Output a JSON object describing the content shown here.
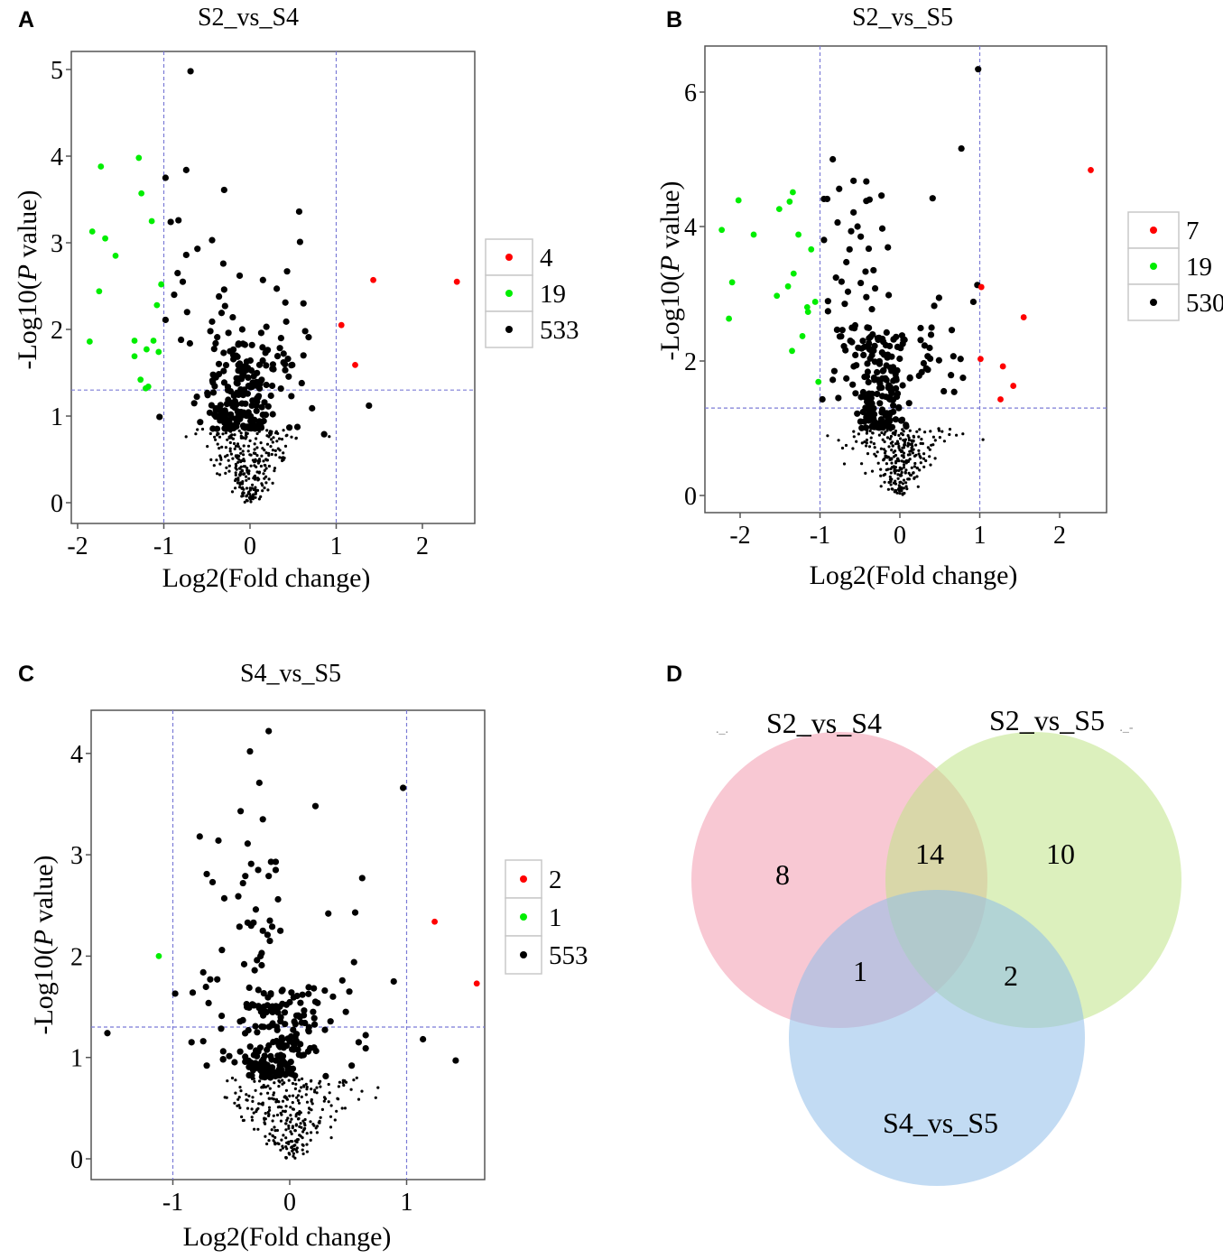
{
  "colors": {
    "up": "#ff0000",
    "down": "#00ee00",
    "ns": "#000000",
    "guide": "#7b7bd6",
    "frame": "#555555",
    "venn_a": "#f29aae",
    "venn_b": "#bfe486",
    "venn_c": "#8fbde9"
  },
  "panel_letters": [
    "A",
    "B",
    "C",
    "D"
  ],
  "chart_data": [
    {
      "type": "scatter",
      "title": "S2_vs_S4",
      "xlabel": "Log2(Fold change)",
      "ylabel_parts": [
        "-Log10(",
        "P",
        " value)"
      ],
      "xlim": [
        -2.0,
        2.6
      ],
      "ylim": [
        -0.2,
        5.2
      ],
      "xticks": [
        -2,
        -1,
        0,
        1,
        2
      ],
      "yticks": [
        0,
        1,
        2,
        3,
        4,
        5
      ],
      "thresholds": {
        "log2fc": [
          -1,
          1
        ],
        "neglog10p": 1.3
      },
      "legend": {
        "position": "right",
        "entries": [
          {
            "label": "4",
            "group": "up"
          },
          {
            "label": "19",
            "group": "down"
          },
          {
            "label": "533",
            "group": "ns"
          }
        ]
      },
      "up": [
        [
          1.43,
          2.57
        ],
        [
          2.4,
          2.55
        ],
        [
          1.06,
          2.05
        ],
        [
          1.22,
          1.59
        ]
      ],
      "down": [
        [
          -1.73,
          3.88
        ],
        [
          -1.29,
          3.98
        ],
        [
          -1.26,
          3.57
        ],
        [
          -1.14,
          3.25
        ],
        [
          -1.83,
          3.13
        ],
        [
          -1.68,
          3.05
        ],
        [
          -1.56,
          2.85
        ],
        [
          -1.75,
          2.44
        ],
        [
          -1.03,
          2.52
        ],
        [
          -1.08,
          2.28
        ],
        [
          -1.86,
          1.86
        ],
        [
          -1.34,
          1.87
        ],
        [
          -1.12,
          1.87
        ],
        [
          -1.2,
          1.77
        ],
        [
          -1.06,
          1.74
        ],
        [
          -1.34,
          1.69
        ],
        [
          -1.27,
          1.42
        ],
        [
          -1.18,
          1.34
        ],
        [
          -1.21,
          1.32
        ]
      ],
      "ns_points": [
        [
          -0.69,
          4.98
        ],
        [
          -0.74,
          3.84
        ],
        [
          -0.98,
          3.75
        ],
        [
          -0.3,
          3.61
        ],
        [
          0.57,
          3.36
        ],
        [
          0.58,
          3.01
        ],
        [
          -0.92,
          3.24
        ],
        [
          -0.83,
          3.26
        ],
        [
          -0.44,
          3.03
        ],
        [
          -0.61,
          2.93
        ],
        [
          -0.74,
          2.86
        ],
        [
          -0.31,
          2.76
        ],
        [
          0.43,
          2.67
        ],
        [
          -0.12,
          2.62
        ],
        [
          0.15,
          2.57
        ],
        [
          -0.84,
          2.65
        ],
        [
          -0.78,
          2.55
        ],
        [
          0.31,
          2.47
        ],
        [
          -0.3,
          2.46
        ],
        [
          -0.88,
          2.4
        ],
        [
          -0.36,
          2.38
        ],
        [
          0.41,
          2.31
        ],
        [
          0.62,
          2.3
        ],
        [
          -0.29,
          2.27
        ],
        [
          -0.73,
          2.2
        ],
        [
          -0.33,
          2.19
        ],
        [
          -0.2,
          2.14
        ],
        [
          -0.98,
          2.11
        ],
        [
          -0.44,
          2.09
        ],
        [
          0.42,
          2.09
        ],
        [
          0.19,
          2.03
        ],
        [
          -0.09,
          2.0
        ],
        [
          -0.46,
          1.98
        ],
        [
          -0.25,
          1.96
        ],
        [
          0.13,
          1.96
        ],
        [
          0.64,
          1.98
        ],
        [
          0.68,
          1.91
        ],
        [
          -0.38,
          1.91
        ],
        [
          -0.8,
          1.88
        ],
        [
          0.36,
          1.9
        ],
        [
          1.38,
          1.12
        ],
        [
          0.86,
          0.79
        ],
        [
          0.72,
          1.09
        ],
        [
          -1.05,
          0.99
        ],
        [
          0.62,
          1.7
        ],
        [
          0.39,
          1.72
        ],
        [
          0.44,
          1.66
        ],
        [
          0.49,
          1.59
        ],
        [
          0.6,
          1.38
        ],
        [
          0.48,
          1.23
        ]
      ],
      "ns_cloud": {
        "total_ns": 533,
        "big_center": -0.1,
        "big_spread": 0.3,
        "big_ymin": 0.85,
        "big_ymax": 1.85,
        "big_fraction": 0.42,
        "small_spread": 0.32,
        "small_ymax": 0.85,
        "seed": 11
      }
    },
    {
      "type": "scatter",
      "title": "S2_vs_S5",
      "xlabel": "Log2(Fold change)",
      "ylabel_parts": [
        "-Log10(",
        "P",
        " value)"
      ],
      "xlim": [
        -2.4,
        2.6
      ],
      "ylim": [
        -0.25,
        6.6
      ],
      "xticks": [
        -2,
        -1,
        0,
        1,
        2
      ],
      "yticks": [
        0,
        2,
        4,
        6
      ],
      "thresholds": {
        "log2fc": [
          -1,
          1
        ],
        "neglog10p": 1.3
      },
      "legend": {
        "position": "right",
        "entries": [
          {
            "label": "7",
            "group": "up"
          },
          {
            "label": "19",
            "group": "down"
          },
          {
            "label": "530",
            "group": "ns"
          }
        ]
      },
      "up": [
        [
          2.39,
          4.84
        ],
        [
          1.02,
          3.1
        ],
        [
          1.55,
          2.65
        ],
        [
          1.01,
          2.03
        ],
        [
          1.29,
          1.92
        ],
        [
          1.42,
          1.63
        ],
        [
          1.26,
          1.43
        ]
      ],
      "down": [
        [
          -2.23,
          3.95
        ],
        [
          -2.02,
          4.39
        ],
        [
          -1.83,
          3.88
        ],
        [
          -1.51,
          4.26
        ],
        [
          -1.38,
          4.37
        ],
        [
          -1.34,
          4.51
        ],
        [
          -1.27,
          3.88
        ],
        [
          -1.11,
          3.66
        ],
        [
          -2.1,
          3.17
        ],
        [
          -1.33,
          3.3
        ],
        [
          -1.4,
          3.11
        ],
        [
          -1.54,
          2.97
        ],
        [
          -1.06,
          2.88
        ],
        [
          -1.16,
          2.8
        ],
        [
          -1.15,
          2.73
        ],
        [
          -2.14,
          2.63
        ],
        [
          -1.22,
          2.37
        ],
        [
          -1.35,
          2.15
        ],
        [
          -1.02,
          1.69
        ]
      ],
      "ns_points": [
        [
          0.98,
          6.34
        ],
        [
          0.77,
          5.16
        ],
        [
          -0.84,
          5.0
        ],
        [
          0.41,
          4.42
        ],
        [
          0.97,
          3.13
        ],
        [
          0.92,
          2.88
        ],
        [
          -0.95,
          4.41
        ],
        [
          -0.91,
          4.41
        ],
        [
          -0.76,
          4.56
        ],
        [
          -0.58,
          4.68
        ],
        [
          -0.42,
          4.67
        ],
        [
          -0.23,
          4.46
        ],
        [
          -0.42,
          4.38
        ],
        [
          -0.38,
          4.4
        ],
        [
          -0.78,
          4.06
        ],
        [
          -0.58,
          4.21
        ],
        [
          -0.22,
          3.97
        ],
        [
          -0.53,
          4.0
        ],
        [
          -0.61,
          3.93
        ],
        [
          -0.49,
          3.85
        ],
        [
          -0.95,
          3.8
        ],
        [
          -0.63,
          3.66
        ],
        [
          -0.39,
          3.67
        ],
        [
          -0.15,
          3.69
        ],
        [
          -0.67,
          3.47
        ],
        [
          -0.33,
          3.35
        ],
        [
          -0.43,
          3.33
        ],
        [
          -0.8,
          3.24
        ],
        [
          -0.73,
          3.18
        ],
        [
          -0.49,
          3.16
        ],
        [
          -0.31,
          3.08
        ],
        [
          -0.65,
          3.03
        ],
        [
          -0.14,
          2.98
        ],
        [
          -0.42,
          2.95
        ],
        [
          0.49,
          2.94
        ],
        [
          0.43,
          2.82
        ],
        [
          -0.9,
          2.89
        ],
        [
          -0.9,
          2.74
        ],
        [
          -0.69,
          2.85
        ],
        [
          -0.35,
          2.77
        ],
        [
          0.26,
          2.49
        ],
        [
          0.65,
          2.46
        ],
        [
          0.39,
          2.39
        ],
        [
          0.31,
          2.23
        ],
        [
          0.49,
          2.01
        ],
        [
          0.67,
          2.07
        ],
        [
          0.76,
          2.03
        ],
        [
          0.79,
          1.75
        ],
        [
          0.64,
          1.79
        ],
        [
          0.68,
          1.54
        ],
        [
          0.35,
          1.87
        ],
        [
          0.24,
          1.78
        ],
        [
          0.55,
          1.55
        ],
        [
          -0.82,
          1.85
        ],
        [
          -0.84,
          1.72
        ],
        [
          -0.67,
          1.74
        ],
        [
          -0.77,
          1.45
        ],
        [
          -0.97,
          1.43
        ],
        [
          -0.72,
          2.46
        ],
        [
          -0.7,
          2.22
        ],
        [
          -0.56,
          2.53
        ],
        [
          -0.6,
          2.28
        ]
      ],
      "ns_cloud": {
        "total_ns": 530,
        "big_center": -0.2,
        "big_spread": 0.22,
        "big_ymin": 1.0,
        "big_ymax": 2.5,
        "big_fraction": 0.42,
        "small_spread": 0.32,
        "small_ymax": 1.0,
        "seed": 23
      }
    },
    {
      "type": "scatter",
      "title": "S4_vs_S5",
      "xlabel": "Log2(Fold change)",
      "ylabel_parts": [
        "-Log10(",
        "P",
        " value)"
      ],
      "xlim": [
        -1.7,
        1.7
      ],
      "ylim": [
        -0.2,
        4.4
      ],
      "xticks": [
        -1,
        0,
        1
      ],
      "yticks": [
        0,
        1,
        2,
        3,
        4
      ],
      "thresholds": {
        "log2fc": [
          -1,
          1
        ],
        "neglog10p": 1.3
      },
      "legend": {
        "position": "right",
        "entries": [
          {
            "label": "2",
            "group": "up"
          },
          {
            "label": "1",
            "group": "down"
          },
          {
            "label": "553",
            "group": "ns"
          }
        ]
      },
      "up": [
        [
          1.24,
          2.34
        ],
        [
          1.6,
          1.73
        ]
      ],
      "down": [
        [
          -1.12,
          2.0
        ]
      ],
      "ns_points": [
        [
          -0.18,
          4.22
        ],
        [
          -0.34,
          4.02
        ],
        [
          -0.26,
          3.71
        ],
        [
          0.97,
          3.66
        ],
        [
          0.22,
          3.48
        ],
        [
          -0.42,
          3.43
        ],
        [
          -0.23,
          3.35
        ],
        [
          -0.77,
          3.18
        ],
        [
          -0.61,
          3.14
        ],
        [
          -0.36,
          3.11
        ],
        [
          -0.33,
          2.91
        ],
        [
          -0.27,
          2.85
        ],
        [
          -0.16,
          2.93
        ],
        [
          -0.12,
          2.93
        ],
        [
          -0.12,
          2.85
        ],
        [
          -0.18,
          2.79
        ],
        [
          -0.71,
          2.81
        ],
        [
          -0.66,
          2.73
        ],
        [
          -0.38,
          2.79
        ],
        [
          -0.4,
          2.72
        ],
        [
          0.62,
          2.77
        ],
        [
          -0.56,
          2.57
        ],
        [
          -0.44,
          2.59
        ],
        [
          -0.1,
          2.56
        ],
        [
          -0.29,
          2.46
        ],
        [
          0.33,
          2.42
        ],
        [
          0.56,
          2.43
        ],
        [
          -0.36,
          2.33
        ],
        [
          -0.31,
          2.33
        ],
        [
          -0.33,
          2.3
        ],
        [
          -0.43,
          2.29
        ],
        [
          -0.17,
          2.35
        ],
        [
          -0.15,
          2.29
        ],
        [
          -0.23,
          2.25
        ],
        [
          -0.19,
          2.21
        ],
        [
          -0.17,
          2.15
        ],
        [
          -0.08,
          2.25
        ],
        [
          -0.58,
          2.06
        ],
        [
          0.55,
          1.94
        ],
        [
          -0.74,
          1.84
        ],
        [
          -0.68,
          1.77
        ],
        [
          -0.62,
          1.77
        ],
        [
          -0.98,
          1.63
        ],
        [
          -0.83,
          1.64
        ],
        [
          0.89,
          1.75
        ],
        [
          0.45,
          1.76
        ],
        [
          0.3,
          1.66
        ],
        [
          0.37,
          1.6
        ],
        [
          0.51,
          1.65
        ],
        [
          0.22,
          1.55
        ],
        [
          0.2,
          1.45
        ],
        [
          0.48,
          1.45
        ],
        [
          -1.56,
          1.24
        ],
        [
          1.14,
          1.18
        ],
        [
          1.42,
          0.97
        ],
        [
          -0.84,
          1.15
        ],
        [
          -0.74,
          1.16
        ],
        [
          -0.71,
          0.92
        ],
        [
          -0.57,
          0.98
        ],
        [
          0.65,
          1.22
        ],
        [
          0.65,
          1.09
        ],
        [
          0.59,
          1.15
        ],
        [
          0.53,
          0.92
        ],
        [
          0.13,
          1.34
        ],
        [
          -0.39,
          1.92
        ],
        [
          -0.3,
          1.86
        ],
        [
          -0.24,
          1.91
        ],
        [
          -0.28,
          1.96
        ],
        [
          -0.25,
          2.0
        ],
        [
          -0.24,
          2.03
        ]
      ],
      "ns_cloud": {
        "total_ns": 553,
        "big_center": -0.15,
        "big_spread": 0.25,
        "big_ymin": 0.8,
        "big_ymax": 1.7,
        "big_fraction": 0.4,
        "small_spread": 0.3,
        "small_ymax": 0.8,
        "seed": 37
      }
    },
    {
      "type": "venn",
      "sets": [
        "S2_vs_S4",
        "S2_vs_S5",
        "S4_vs_S5"
      ],
      "regions": {
        "S2_vs_S4_only": 8,
        "S2_vs_S4_and_S2_vs_S5": 14,
        "S2_vs_S5_only": 10,
        "S2_vs_S4_and_S4_vs_S5": 1,
        "S2_vs_S5_and_S4_vs_S5": 2
      }
    }
  ]
}
